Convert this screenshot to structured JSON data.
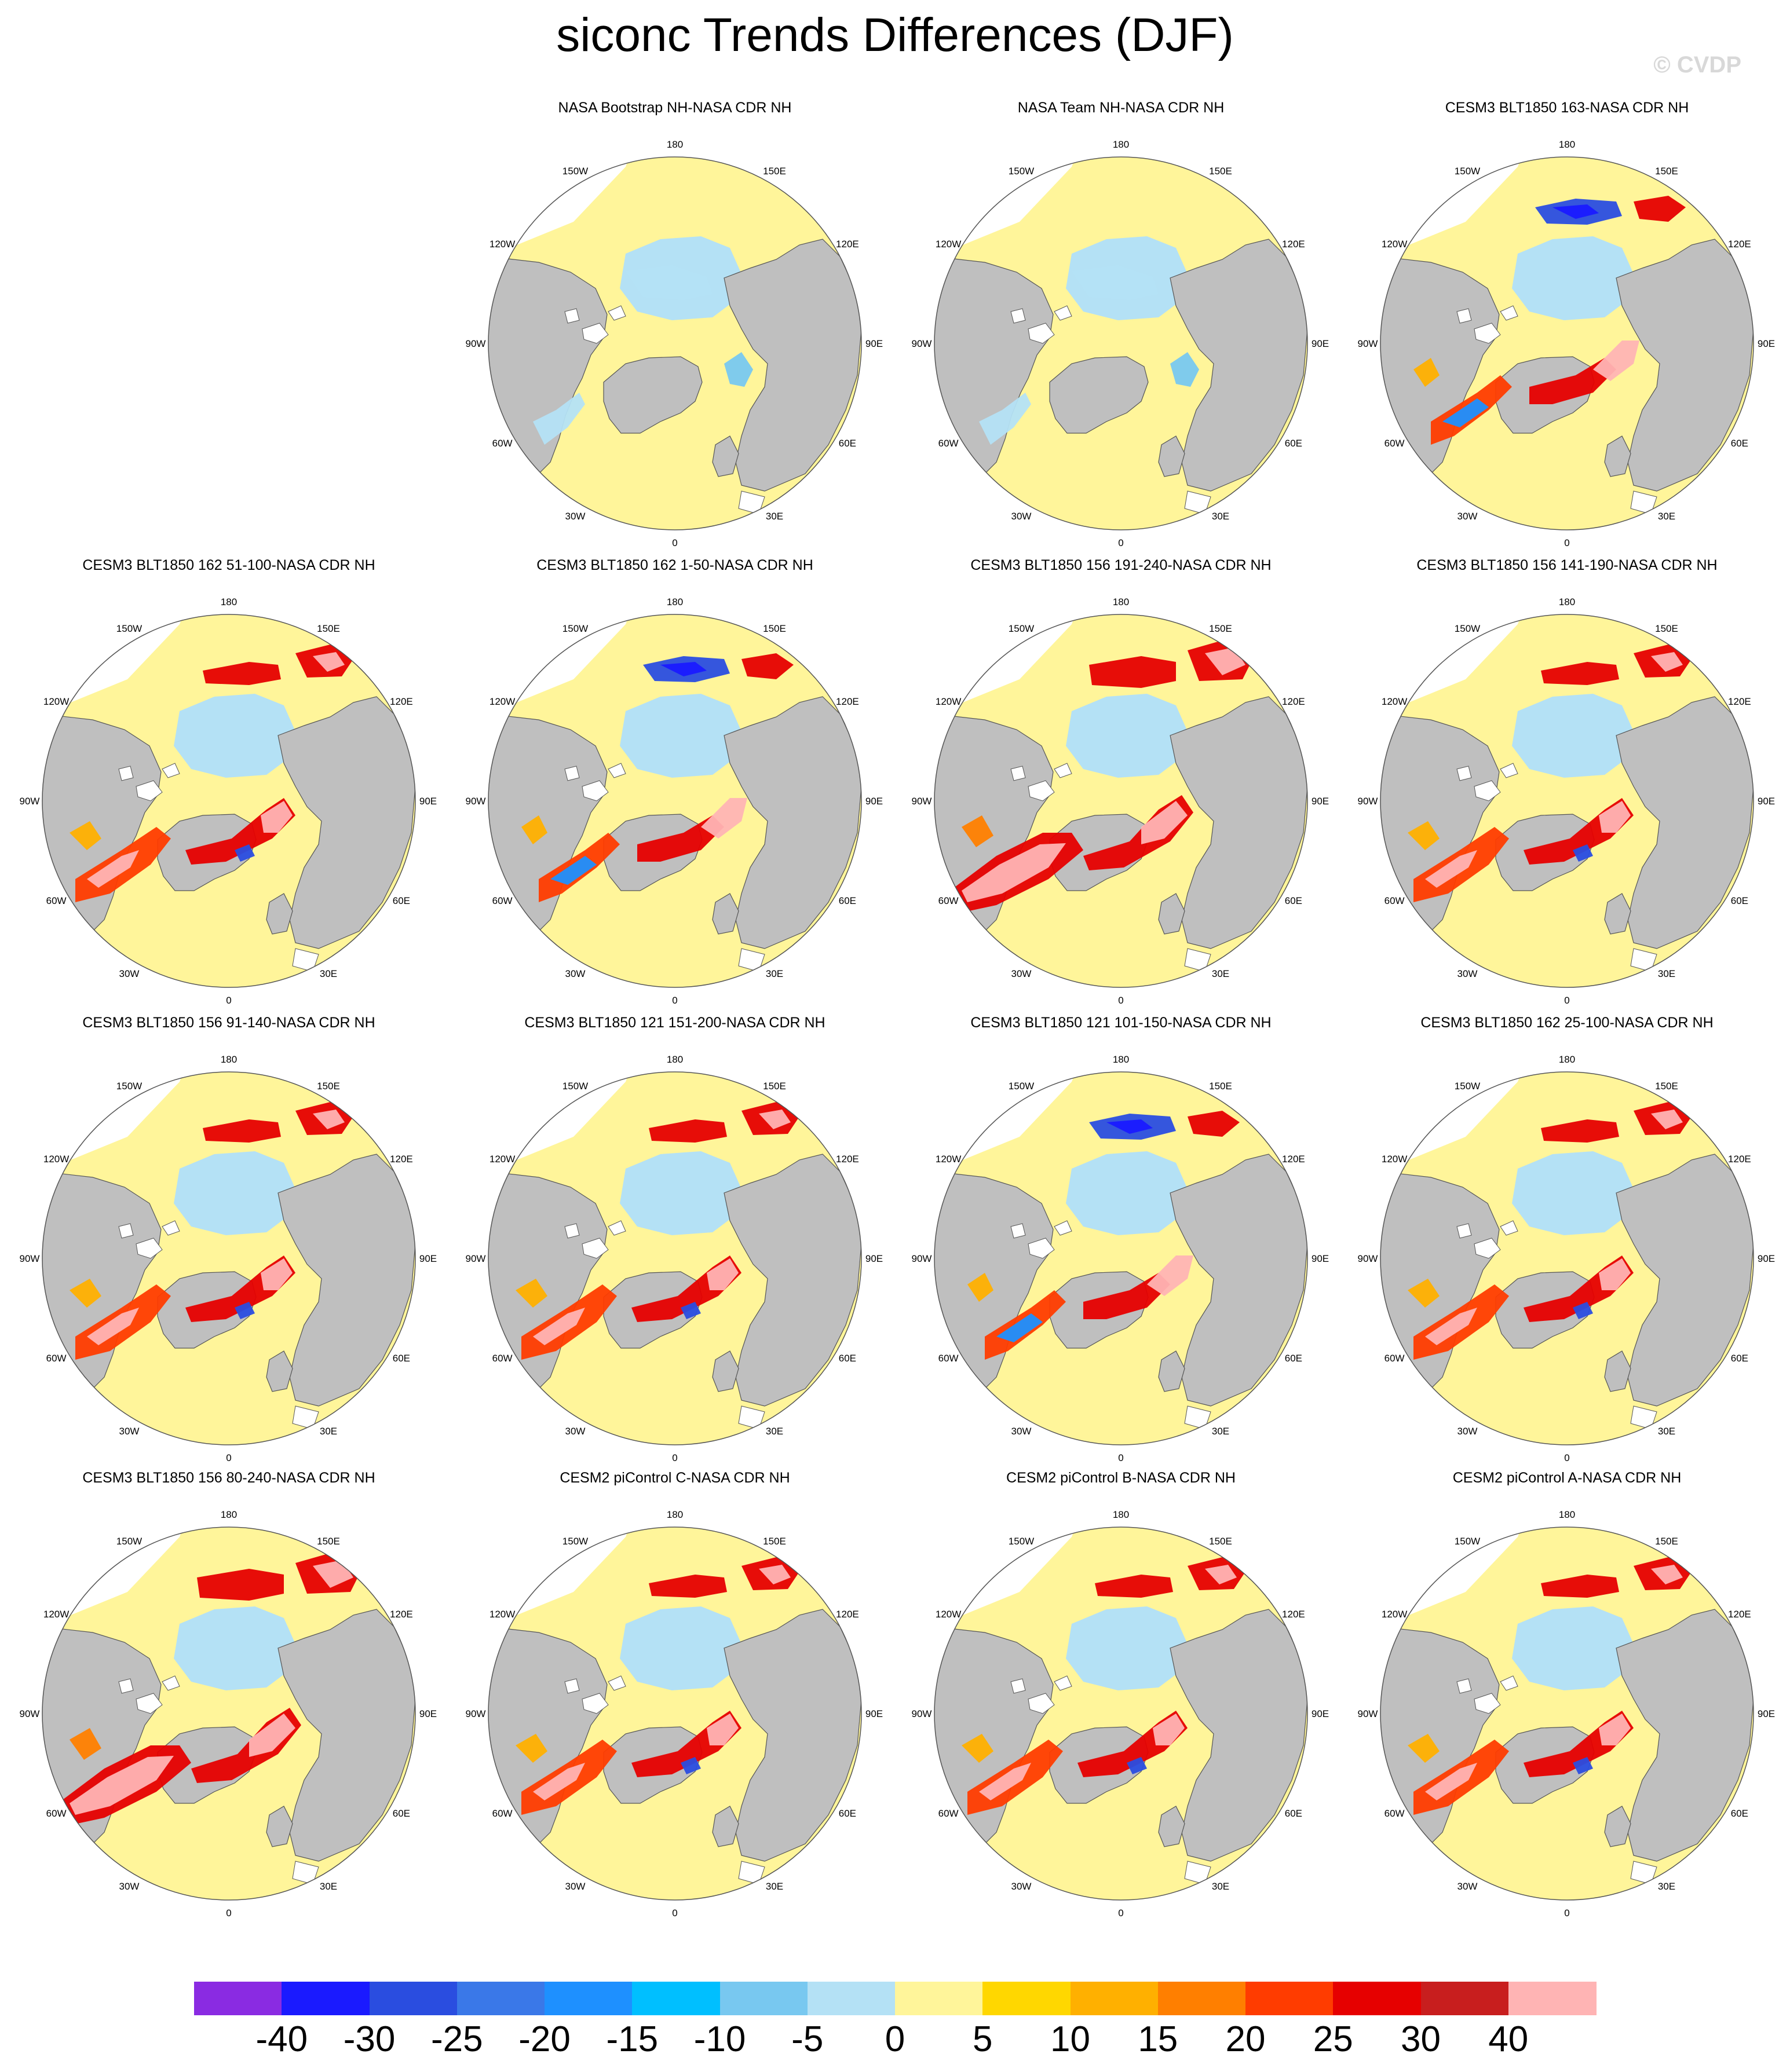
{
  "title": "siconc Trends Differences (DJF)",
  "watermark": "© CVDP",
  "lon_labels": [
    "180",
    "150E",
    "120E",
    "90E",
    "60E",
    "30E",
    "0",
    "30W",
    "60W",
    "90W",
    "120W",
    "150W"
  ],
  "panels": [
    {
      "title": "NASA Bootstrap NH-NASA CDR NH",
      "style": "small"
    },
    {
      "title": "NASA Team NH-NASA CDR NH",
      "style": "small"
    },
    {
      "title": "CESM3 BLT1850 163-NASA CDR NH",
      "style": "mixed"
    },
    {
      "title": "CESM3 BLT1850 162 51-100-NASA CDR NH",
      "style": "warm"
    },
    {
      "title": "CESM3 BLT1850 162 1-50-NASA CDR NH",
      "style": "mixed"
    },
    {
      "title": "CESM3 BLT1850 156 191-240-NASA CDR NH",
      "style": "hot"
    },
    {
      "title": "CESM3 BLT1850 156 141-190-NASA CDR NH",
      "style": "warm"
    },
    {
      "title": "CESM3 BLT1850 156 91-140-NASA CDR NH",
      "style": "warm"
    },
    {
      "title": "CESM3 BLT1850 121 151-200-NASA CDR NH",
      "style": "warm"
    },
    {
      "title": "CESM3 BLT1850 121 101-150-NASA CDR NH",
      "style": "mixed"
    },
    {
      "title": "CESM3 BLT1850 162 25-100-NASA CDR NH",
      "style": "warm"
    },
    {
      "title": "CESM3 BLT1850 156 80-240-NASA CDR NH",
      "style": "hot"
    },
    {
      "title": "CESM2 piControl C-NASA CDR NH",
      "style": "warm"
    },
    {
      "title": "CESM2 piControl B-NASA CDR NH",
      "style": "warm"
    },
    {
      "title": "CESM2 piControl A-NASA CDR NH",
      "style": "warm"
    }
  ],
  "colorbar": {
    "colors": [
      "#8a2be2",
      "#1a1aff",
      "#2a4de0",
      "#3a78e8",
      "#1e90ff",
      "#00bfff",
      "#78c8f0",
      "#b4e1f5",
      "#fff59a",
      "#ffd700",
      "#ffb000",
      "#ff7f00",
      "#ff3c00",
      "#e60000",
      "#c81e1e",
      "#ffb4b4"
    ],
    "labels": [
      "-40",
      "-30",
      "-25",
      "-20",
      "-15",
      "-10",
      "-5",
      "0",
      "5",
      "10",
      "15",
      "20",
      "25",
      "30",
      "40"
    ]
  }
}
